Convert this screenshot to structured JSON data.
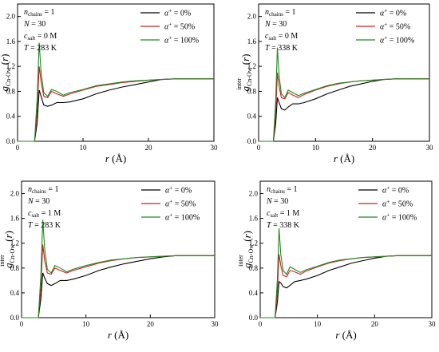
{
  "chart_data": [
    {
      "type": "line",
      "panel": "top-left",
      "annotation": {
        "n_chains": "1",
        "N": "30",
        "c_salt": "0 M",
        "T": "283 K"
      },
      "xlabel": "r (Å)",
      "ylabel": "g inter Cn-Ow (r)",
      "xlim": [
        0,
        30
      ],
      "ylim": [
        0,
        2.2
      ],
      "xticks": [
        "0",
        "10",
        "20",
        "30"
      ],
      "yticks": [
        "0.0",
        "0.4",
        "0.8",
        "1.2",
        "1.6",
        "2.0"
      ],
      "legend_position": "top-right",
      "series": [
        {
          "name": "α+ = 0%",
          "color": "#000000",
          "x": [
            0,
            2.6,
            3.0,
            3.3,
            3.6,
            4.0,
            4.6,
            5.2,
            6.0,
            7.0,
            8.0,
            10,
            12,
            14,
            16,
            18,
            20,
            22,
            24,
            26,
            28,
            30
          ],
          "y": [
            0,
            0,
            0.3,
            0.82,
            0.72,
            0.58,
            0.56,
            0.58,
            0.62,
            0.62,
            0.63,
            0.68,
            0.76,
            0.82,
            0.87,
            0.91,
            0.95,
            0.99,
            1.0,
            1.0,
            1.0,
            1.0
          ]
        },
        {
          "name": "α+ = 50%",
          "color": "#cc2222",
          "x": [
            0,
            2.6,
            3.0,
            3.3,
            3.6,
            4.0,
            4.6,
            5.2,
            6.0,
            7.0,
            8.0,
            10,
            12,
            14,
            16,
            18,
            20,
            22,
            24,
            26,
            28,
            30
          ],
          "y": [
            0,
            0,
            0.5,
            1.2,
            0.95,
            0.72,
            0.7,
            0.8,
            0.76,
            0.72,
            0.76,
            0.82,
            0.88,
            0.91,
            0.94,
            0.96,
            0.98,
            0.99,
            1.0,
            1.0,
            1.0,
            1.0
          ]
        },
        {
          "name": "α+ = 100%",
          "color": "#228822",
          "x": [
            0,
            2.6,
            3.0,
            3.3,
            3.6,
            4.0,
            4.6,
            5.2,
            6.0,
            7.0,
            8.0,
            10,
            12,
            14,
            16,
            18,
            20,
            22,
            24,
            26,
            28,
            30
          ],
          "y": [
            0,
            0,
            0.7,
            1.58,
            1.1,
            0.78,
            0.72,
            0.83,
            0.8,
            0.74,
            0.78,
            0.83,
            0.89,
            0.92,
            0.95,
            0.97,
            0.98,
            0.99,
            1.0,
            1.0,
            1.0,
            1.0
          ]
        }
      ]
    },
    {
      "type": "line",
      "panel": "top-right",
      "annotation": {
        "n_chains": "1",
        "N": "30",
        "c_salt": "0 M",
        "T": "338 K"
      },
      "xlabel": "r (Å)",
      "ylabel": "g inter Cn-Ow (r)",
      "xlim": [
        0,
        30
      ],
      "ylim": [
        0,
        2.2
      ],
      "xticks": [
        "0",
        "10",
        "20",
        "30"
      ],
      "yticks": [
        "0.0",
        "0.4",
        "0.8",
        "1.2",
        "1.6",
        "2.0"
      ],
      "legend_position": "top-right",
      "series": [
        {
          "name": "α+ = 0%",
          "color": "#000000",
          "x": [
            0,
            2.6,
            3.0,
            3.3,
            3.6,
            4.0,
            4.6,
            5.2,
            6.0,
            7.0,
            8.0,
            10,
            12,
            14,
            16,
            18,
            20,
            22,
            24,
            26,
            28,
            30
          ],
          "y": [
            0,
            0,
            0.28,
            0.7,
            0.62,
            0.52,
            0.5,
            0.55,
            0.6,
            0.6,
            0.62,
            0.68,
            0.76,
            0.82,
            0.88,
            0.92,
            0.96,
            0.99,
            1.0,
            1.0,
            1.0,
            1.0
          ]
        },
        {
          "name": "α+ = 50%",
          "color": "#cc2222",
          "x": [
            0,
            2.6,
            3.0,
            3.3,
            3.6,
            4.0,
            4.6,
            5.2,
            6.0,
            7.0,
            8.0,
            10,
            12,
            14,
            16,
            18,
            20,
            22,
            24,
            26,
            28,
            30
          ],
          "y": [
            0,
            0,
            0.45,
            1.1,
            0.88,
            0.7,
            0.68,
            0.78,
            0.74,
            0.7,
            0.75,
            0.82,
            0.88,
            0.92,
            0.95,
            0.97,
            0.98,
            0.99,
            1.0,
            1.0,
            1.0,
            1.0
          ]
        },
        {
          "name": "α+ = 100%",
          "color": "#228822",
          "x": [
            0,
            2.6,
            3.0,
            3.3,
            3.6,
            4.0,
            4.6,
            5.2,
            6.0,
            7.0,
            8.0,
            10,
            12,
            14,
            16,
            18,
            20,
            22,
            24,
            26,
            28,
            30
          ],
          "y": [
            0,
            0,
            0.65,
            1.5,
            1.05,
            0.76,
            0.7,
            0.82,
            0.78,
            0.73,
            0.77,
            0.83,
            0.89,
            0.93,
            0.95,
            0.97,
            0.98,
            0.99,
            1.0,
            1.0,
            1.0,
            1.0
          ]
        }
      ]
    },
    {
      "type": "line",
      "panel": "bottom-left",
      "annotation": {
        "n_chains": "1",
        "N": "30",
        "c_salt": "1 M",
        "T": "283 K"
      },
      "xlabel": "r (Å)",
      "ylabel": "g inter Cn-Ow (r)",
      "xlim": [
        0,
        30
      ],
      "ylim": [
        0,
        2.2
      ],
      "xticks": [
        "0",
        "10",
        "20",
        "30"
      ],
      "yticks": [
        "0.0",
        "0.4",
        "0.8",
        "1.2",
        "1.6",
        "2.0"
      ],
      "legend_position": "top-right",
      "series": [
        {
          "name": "α+ = 0%",
          "color": "#000000",
          "x": [
            0,
            2.6,
            3.0,
            3.3,
            3.6,
            4.0,
            4.6,
            5.2,
            6.0,
            7.0,
            8.0,
            10,
            12,
            14,
            16,
            18,
            20,
            22,
            24,
            26,
            28,
            30
          ],
          "y": [
            0,
            0,
            0.3,
            0.72,
            0.64,
            0.55,
            0.52,
            0.55,
            0.6,
            0.6,
            0.62,
            0.68,
            0.76,
            0.82,
            0.87,
            0.91,
            0.95,
            0.98,
            1.0,
            1.0,
            1.0,
            1.0
          ]
        },
        {
          "name": "α+ = 50%",
          "color": "#cc2222",
          "x": [
            0,
            2.6,
            3.0,
            3.3,
            3.6,
            4.0,
            4.6,
            5.2,
            6.0,
            7.0,
            8.0,
            10,
            12,
            14,
            16,
            18,
            20,
            22,
            24,
            26,
            28,
            30
          ],
          "y": [
            0,
            0,
            0.48,
            1.18,
            0.92,
            0.72,
            0.7,
            0.8,
            0.76,
            0.72,
            0.76,
            0.82,
            0.88,
            0.92,
            0.95,
            0.97,
            0.98,
            0.99,
            1.0,
            1.0,
            1.0,
            1.0
          ]
        },
        {
          "name": "α+ = 100%",
          "color": "#228822",
          "x": [
            0,
            2.6,
            3.0,
            3.3,
            3.6,
            4.0,
            4.6,
            5.2,
            6.0,
            7.0,
            8.0,
            10,
            12,
            14,
            16,
            18,
            20,
            22,
            24,
            26,
            28,
            30
          ],
          "y": [
            0,
            0,
            0.68,
            1.58,
            1.1,
            0.78,
            0.72,
            0.84,
            0.8,
            0.74,
            0.78,
            0.84,
            0.89,
            0.93,
            0.95,
            0.97,
            0.98,
            0.99,
            1.0,
            1.0,
            1.0,
            1.0
          ]
        }
      ]
    },
    {
      "type": "line",
      "panel": "bottom-right",
      "annotation": {
        "n_chains": "1",
        "N": "30",
        "c_salt": "1 M",
        "T": "338 K"
      },
      "xlabel": "r (Å)",
      "ylabel": "g inter Cn-Ow (r)",
      "xlim": [
        0,
        30
      ],
      "ylim": [
        0,
        2.2
      ],
      "xticks": [
        "0",
        "10",
        "20",
        "30"
      ],
      "yticks": [
        "0.0",
        "0.4",
        "0.8",
        "1.2",
        "1.6",
        "2.0"
      ],
      "legend_position": "top-right",
      "series": [
        {
          "name": "α+ = 0%",
          "color": "#000000",
          "x": [
            0,
            2.6,
            3.0,
            3.3,
            3.6,
            4.0,
            4.6,
            5.2,
            6.0,
            7.0,
            8.0,
            10,
            12,
            14,
            16,
            18,
            20,
            22,
            24,
            26,
            28,
            30
          ],
          "y": [
            0,
            0,
            0.25,
            0.58,
            0.56,
            0.5,
            0.48,
            0.52,
            0.58,
            0.6,
            0.62,
            0.68,
            0.76,
            0.82,
            0.88,
            0.92,
            0.96,
            0.99,
            1.0,
            1.0,
            1.0,
            1.0
          ]
        },
        {
          "name": "α+ = 50%",
          "color": "#cc2222",
          "x": [
            0,
            2.6,
            3.0,
            3.3,
            3.6,
            4.0,
            4.6,
            5.2,
            6.0,
            7.0,
            8.0,
            10,
            12,
            14,
            16,
            18,
            20,
            22,
            24,
            26,
            28,
            30
          ],
          "y": [
            0,
            0,
            0.42,
            1.02,
            0.84,
            0.68,
            0.66,
            0.76,
            0.74,
            0.7,
            0.75,
            0.82,
            0.88,
            0.92,
            0.95,
            0.97,
            0.98,
            0.99,
            1.0,
            1.0,
            1.0,
            1.0
          ]
        },
        {
          "name": "α+ = 100%",
          "color": "#228822",
          "x": [
            0,
            2.6,
            3.0,
            3.3,
            3.6,
            4.0,
            4.6,
            5.2,
            6.0,
            7.0,
            8.0,
            10,
            12,
            14,
            16,
            18,
            20,
            22,
            24,
            26,
            28,
            30
          ],
          "y": [
            0,
            0,
            0.62,
            1.44,
            1.02,
            0.76,
            0.7,
            0.82,
            0.78,
            0.73,
            0.77,
            0.83,
            0.89,
            0.93,
            0.95,
            0.97,
            0.98,
            0.99,
            1.0,
            1.0,
            1.0,
            1.0
          ]
        }
      ]
    }
  ]
}
